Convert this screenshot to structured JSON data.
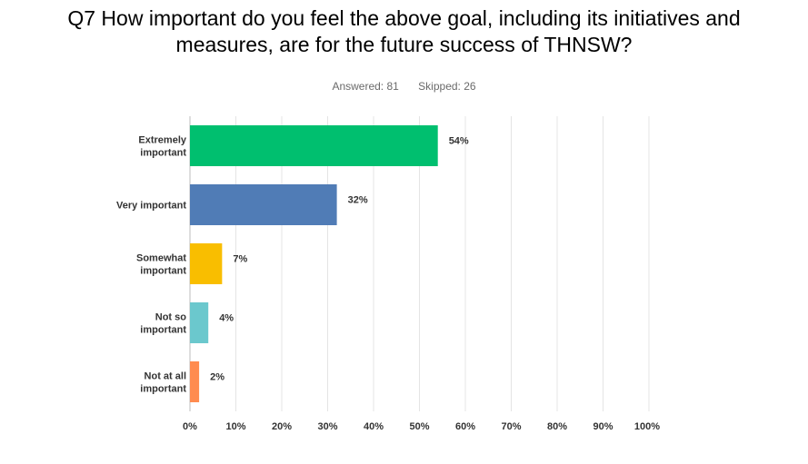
{
  "title_line1": "Q7 How important do you feel the above goal, including its initiatives and",
  "title_line2": "measures, are for the future success of THNSW?",
  "answered": "Answered: 81",
  "skipped": "Skipped: 26",
  "colors": {
    "grid": "#e4e4e4",
    "axis": "#bdbdbd",
    "label_text": "#333333",
    "value_text": "#333333"
  },
  "chart_data": {
    "type": "bar",
    "orientation": "horizontal",
    "categories": [
      [
        "Extremely",
        "important"
      ],
      [
        "Very important"
      ],
      [
        "Somewhat",
        "important"
      ],
      [
        "Not so",
        "important"
      ],
      [
        "Not at all",
        "important"
      ]
    ],
    "values": [
      54,
      32,
      7,
      4,
      2
    ],
    "value_labels": [
      "54%",
      "32%",
      "7%",
      "4%",
      "2%"
    ],
    "bar_colors": [
      "#00bf6f",
      "#507cb6",
      "#f9be00",
      "#6bc8cd",
      "#ff8b4f"
    ],
    "xlim": [
      0,
      100
    ],
    "x_ticks": [
      "0%",
      "10%",
      "20%",
      "30%",
      "40%",
      "50%",
      "60%",
      "70%",
      "80%",
      "90%",
      "100%"
    ],
    "grid": true,
    "legend": "none"
  }
}
